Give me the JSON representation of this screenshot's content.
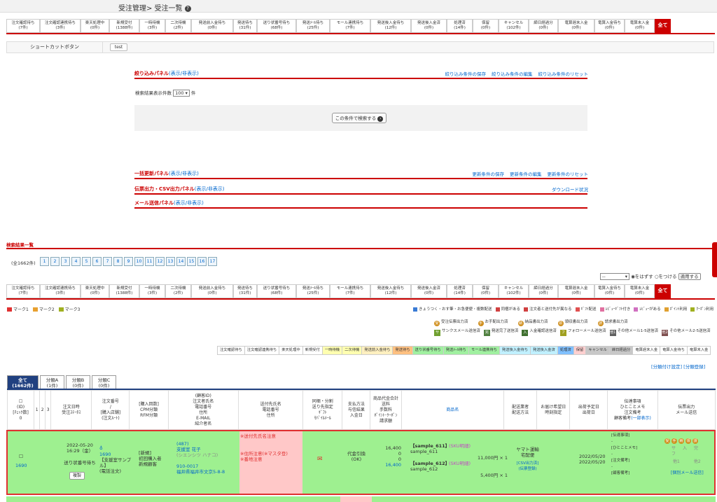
{
  "breadcrumb": "受注管理> 受注一覧",
  "status_tabs": [
    [
      "注文確認待ち",
      "(7件)"
    ],
    [
      "注文確認連携待ち",
      "(3件)"
    ],
    [
      "楽天処理中",
      "(0件)"
    ],
    [
      "新規受付",
      "(1388件)"
    ],
    [
      "一時待機",
      "(3件)"
    ],
    [
      "二次待機",
      "(2件)"
    ],
    [
      "発送前入金待ち",
      "(0件)"
    ],
    [
      "発送待ち",
      "(31件)"
    ],
    [
      "送り状番号待ち",
      "(68件)"
    ],
    [
      "発送ﾒｰﾙ待ち",
      "(25件)"
    ],
    [
      "モール連携待ち",
      "(7件)"
    ],
    [
      "発送後入金待ち",
      "(12件)"
    ],
    [
      "発送後入金済",
      "(0件)"
    ],
    [
      "処理済",
      "(14件)"
    ],
    [
      "保留",
      "(0件)"
    ],
    [
      "キャンセル",
      "(102件)"
    ],
    [
      "締日経過分",
      "(0件)"
    ],
    [
      "竜算遅未入金",
      "(0件)"
    ],
    [
      "竜算入金待ち",
      "(0件)"
    ],
    [
      "竜算未入金",
      "(0件)"
    ]
  ],
  "all_tab": "全て",
  "shortcut": {
    "label": "ショートカットボタン",
    "button": "test"
  },
  "filter_panel": {
    "title": "絞り込みパネル",
    "toggle": "(表示/非表示)",
    "links": [
      "絞り込み条件の保存",
      "絞り込み条件の編集",
      "絞り込み条件のリセット"
    ],
    "count_label": "検索結果表示件数",
    "count_value": "100",
    "count_unit": "件",
    "search_button": "この条件で検索する"
  },
  "bulk_panel": {
    "title": "一括更新パネル",
    "toggle": "(表示/非表示)",
    "links": [
      "更新条件の保存",
      "更新条件の編集",
      "更新条件のリセット"
    ]
  },
  "csv_panel": {
    "title": "伝票出力・CSV出力パネル",
    "toggle": "(表示/非表示)",
    "link": "ダウンロード状況"
  },
  "mail_panel": {
    "title": "メール送信パネル",
    "toggle": "(表示/非表示)"
  },
  "results_title": "検索結果一覧",
  "total": "(全1662件)",
  "pages": [
    "1",
    "2",
    "3",
    "4",
    "5",
    "6",
    "7",
    "8",
    "9",
    "10",
    "11",
    "12",
    "13",
    "14",
    "15",
    "16",
    "17"
  ],
  "mark_select": "--",
  "radio": [
    "をはずす",
    "をつける"
  ],
  "apply_button": "適用する",
  "marks": [
    {
      "label": "マーク1",
      "color": "#e03030"
    },
    {
      "label": "マーク2",
      "color": "#e8a030"
    },
    {
      "label": "マーク3",
      "color": "#a0b020"
    }
  ],
  "legend_row1": [
    "きょうつく・おす筆・お急便便・複数配送",
    "同梱がある",
    "注文者と送付先が異なる",
    "ｷﾞﾌﾄ配送",
    "ﾚﾋﾞｭｰｷﾞﾌﾄ付き",
    "ﾚﾋﾞｭｰがある",
    "ﾎﾟｲﾝﾄ利用",
    "ｸｰﾎﾟﾝ利用"
  ],
  "legend_row2": [
    "受注伝票出力済",
    "お手配出力済",
    "納品書出力済",
    "領収書出力済",
    "請求書出力済"
  ],
  "legend_row3": [
    "サンクスメール送信済",
    "発送完了送信済",
    "入金確認送信済",
    "フォローメール送信済",
    "その他メール1-5送信済",
    "その他メール2-5送信済"
  ],
  "status_strip": [
    "注文確認待ち",
    "注文確認連携待ち",
    "楽天処理中",
    "新規受付",
    "一時待機",
    "二次待機",
    "発送前入金待ち",
    "発送待ち",
    "送り状番号待ち",
    "発送ﾒｰﾙ待ち",
    "モール連携待ち",
    "発送後入金待ち",
    "発送後入金済",
    "処理済",
    "保留",
    "キャンセル",
    "締日経過分",
    "竜算遅未入金",
    "竜算入金待ち",
    "竜算未入金"
  ],
  "group_links": [
    "[分類付け設定]",
    "[分類登録]"
  ],
  "groups": [
    [
      "全て",
      "(1662件)"
    ],
    [
      "分類A",
      "(1件)"
    ],
    [
      "分類B",
      "(0件)"
    ],
    [
      "分類C",
      "(0件)"
    ]
  ],
  "headers": [
    "(ID)\n[ﾁｪｯｸ数]\n0",
    "1",
    "2",
    "3",
    "注文日時\n受注ｽﾃｰﾀｽ",
    "注文番号\n/\n[購入店舗]\n(注文ﾙｰﾄ)",
    "[購入回数]\nCPM分類\nRFM分類",
    "(顧客ID)\n注文者氏名\n電話番号\n住所\nE-MAIL\n紹介者名",
    "送付先氏名\n電話番号\n住所",
    "同梱・分割\n送り先指定\nｷﾞﾌﾄ\nﾓﾊﾞｲﾙﾒｰﾙ",
    "支払方法\n与信結果\n入金日",
    "商品代金合計\n送料\n手数料\nﾎﾟｲﾝﾄ･ｸｰﾎﾟﾝ\n請求額",
    "商品名",
    "配送業者\n配送方法",
    "お届け希望日\n時刻指定",
    "出荷予定日\n出荷日",
    "伝達事項\nひとことメモ\n注文備考\n顧客備考",
    "伝票出力\nメール送信"
  ],
  "headers_extra": {
    "products_link": "商品名",
    "customer_note_link": "(一部表示)"
  },
  "order": {
    "id": "1690",
    "date": "2022-05-20\n16:29（金）",
    "status": "送り状番号待ち",
    "copy": "複製",
    "order_no_icon": "♁",
    "order_no": "1690",
    "shop": "【支援室サンプル】",
    "route": "(電話注文)",
    "cpm": "[新規]\n初回購入者\n新規顧客",
    "customer_id": "(487)",
    "customer_name": "支援室 花子",
    "customer_kana": "(シエンシツ ハナコ)",
    "zip": "910-0017",
    "address": "福井県福井市文京5-8-8",
    "ship_note1": "※送付先氏名注意",
    "ship_note2": "※住所注意(※マスタ登)",
    "ship_note3": "※番地注意",
    "payment": "代金引換\n(OK)",
    "amounts": [
      "16,400",
      "0",
      "0",
      "16,400"
    ],
    "items": [
      {
        "name": "【sample_611】",
        "tag": "(SKU明細)",
        "code": "sample_611",
        "price": "11,000円 × 1"
      },
      {
        "name": "【sample_612】",
        "tag": "(SKU明細)",
        "code": "sample_612",
        "price": "5,400円 × 1"
      }
    ],
    "carrier": "ヤマト運輸\n宅配便",
    "carrier_link": "[CSV出力済]\n(伝票登録)",
    "ship_dates": "2022/05/20\n2022/05/20",
    "notes": [
      "[伝達事項]",
      "-",
      "[ひとことメモ]",
      "-",
      "[注文備考]",
      "-",
      "[顧客備考]"
    ],
    "mail_icons": [
      "受",
      "手",
      "納",
      "領",
      "請"
    ],
    "mail_row2": [
      "サ",
      "入",
      "完",
      "フ"
    ],
    "mail_row3": [
      "他1",
      "他2"
    ],
    "mail_link": "[個別メール送信]"
  },
  "colors": {
    "accent": "#cc0000",
    "row_green": "#9ef090",
    "pink": "#ffc8c8",
    "link": "#0066cc"
  }
}
